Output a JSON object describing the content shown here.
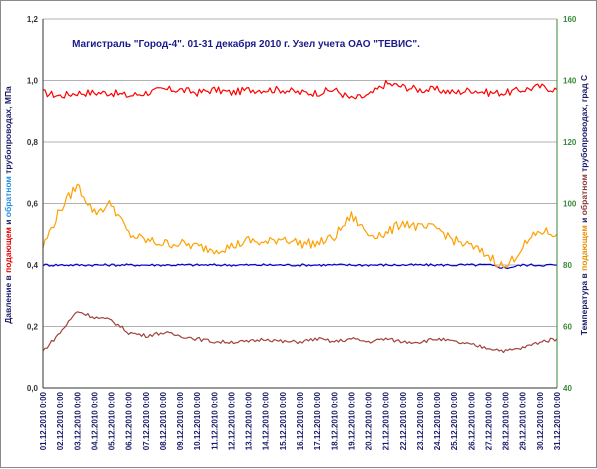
{
  "chart_data": {
    "type": "line",
    "title": "Магистраль \"Город-4\". 01-31 декабря 2010 г. Узел учета ОАО \"ТЕВИС\".",
    "ylabel_left": [
      {
        "text": "Давление в ",
        "color": "#1a1a6a"
      },
      {
        "text": "подающем",
        "color": "#e00000"
      },
      {
        "text": " и ",
        "color": "#1a1a6a"
      },
      {
        "text": "обратном",
        "color": "#2090e0"
      },
      {
        "text": " трубопроводах, МПа",
        "color": "#1a1a6a"
      }
    ],
    "ylabel_right": [
      {
        "text": "Температура в ",
        "color": "#1a1a6a"
      },
      {
        "text": "подающем",
        "color": "#e89000"
      },
      {
        "text": " и ",
        "color": "#1a1a6a"
      },
      {
        "text": "обратном",
        "color": "#8b3a3a"
      },
      {
        "text": " трубопроводах, град С",
        "color": "#1a1a6a"
      }
    ],
    "ylim_left": [
      0,
      1.2
    ],
    "ylim_right": [
      40,
      160
    ],
    "yticks_left": [
      "0,0",
      "0,2",
      "0,4",
      "0,6",
      "0,8",
      "1,0",
      "1,2"
    ],
    "yticks_right": [
      "40",
      "60",
      "80",
      "100",
      "120",
      "140",
      "160"
    ],
    "x": [
      "01.12.2010 0:00",
      "02.12.2010 0:00",
      "03.12.2010 0:00",
      "04.12.2010 0:00",
      "05.12.2010 0:00",
      "06.12.2010 0:00",
      "07.12.2010 0:00",
      "08.12.2010 0:00",
      "09.12.2010 0:00",
      "10.12.2010 0:00",
      "11.12.2010 0:00",
      "12.12.2010 0:00",
      "13.12.2010 0:00",
      "14.12.2010 0:00",
      "15.12.2010 0:00",
      "16.12.2010 0:00",
      "17.12.2010 0:00",
      "18.12.2010 0:00",
      "19.12.2010 0:00",
      "20.12.2010 0:00",
      "21.12.2010 0:00",
      "22.12.2010 0:00",
      "23.12.2010 0:00",
      "24.12.2010 0:00",
      "25.12.2010 0:00",
      "26.12.2010 0:00",
      "27.12.2010 0:00",
      "28.12.2010 0:00",
      "29.12.2010 0:00",
      "30.12.2010 0:00",
      "31.12.2010 0:00"
    ],
    "grid": true,
    "series": [
      {
        "axis": "left",
        "color": "#ff0000",
        "values": [
          0.96,
          0.95,
          0.96,
          0.96,
          0.96,
          0.95,
          0.96,
          0.97,
          0.97,
          0.96,
          0.97,
          0.96,
          0.97,
          0.97,
          0.97,
          0.96,
          0.96,
          0.97,
          0.94,
          0.95,
          0.99,
          0.98,
          0.97,
          0.97,
          0.96,
          0.97,
          0.96,
          0.96,
          0.97,
          0.98,
          0.97
        ]
      },
      {
        "axis": "left",
        "color": "#0000cc",
        "values": [
          0.4,
          0.4,
          0.4,
          0.4,
          0.4,
          0.4,
          0.4,
          0.4,
          0.4,
          0.4,
          0.4,
          0.4,
          0.4,
          0.4,
          0.4,
          0.4,
          0.4,
          0.4,
          0.4,
          0.4,
          0.4,
          0.4,
          0.4,
          0.4,
          0.4,
          0.4,
          0.4,
          0.39,
          0.4,
          0.4,
          0.4
        ]
      },
      {
        "axis": "right",
        "color": "#ffa000",
        "values": [
          86,
          98,
          106,
          97,
          100,
          90,
          88,
          87,
          87,
          86,
          85,
          86,
          88,
          87,
          89,
          87,
          87,
          89,
          96,
          90,
          90,
          94,
          92,
          92,
          88,
          86,
          83,
          79,
          86,
          91,
          90
        ]
      },
      {
        "axis": "right",
        "color": "#a0423a",
        "values": [
          52,
          58,
          65,
          63,
          62,
          58,
          57,
          58,
          57,
          56,
          55,
          55,
          55,
          56,
          55,
          55,
          56,
          55,
          56,
          55,
          56,
          55,
          55,
          56,
          55,
          54,
          53,
          52,
          53,
          55,
          56
        ]
      }
    ]
  }
}
